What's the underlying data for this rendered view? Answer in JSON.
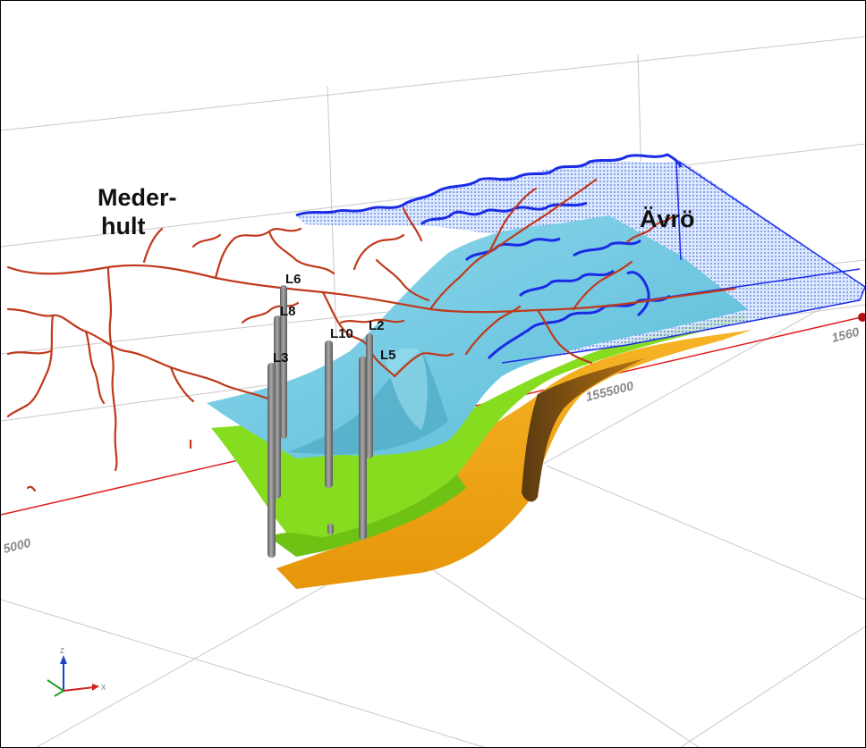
{
  "place_labels": {
    "mederhult_line1": "Meder-",
    "mederhult_line2": "hult",
    "avro": "Ävrö"
  },
  "boreholes": [
    {
      "name": "L6"
    },
    {
      "name": "L8"
    },
    {
      "name": "L3"
    },
    {
      "name": "L10"
    },
    {
      "name": "L2"
    },
    {
      "name": "L5"
    }
  ],
  "axis_ticks": {
    "left": "5000",
    "middle": "1555000",
    "right": "1560"
  },
  "triad": {
    "x": "X",
    "z": "Z"
  },
  "colors": {
    "upper_surface": "#7dcde3",
    "middle_surface": "#84e01d",
    "lower_surface": "#f0a80f",
    "roads": "#c0391a",
    "shoreline": "#1a2be8",
    "boreholes": "#7c7c7c",
    "red_axis": "#e02020",
    "grid": "#c8c8c8"
  }
}
